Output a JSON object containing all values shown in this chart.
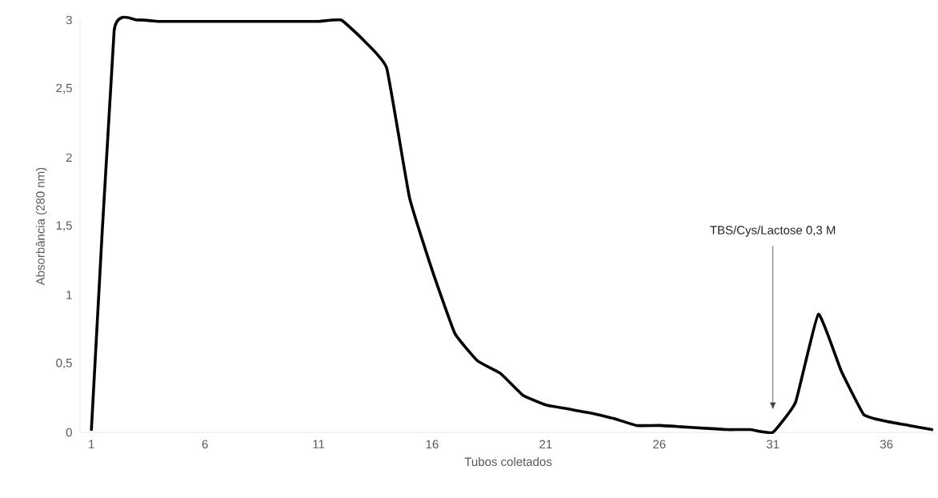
{
  "chart_data": {
    "type": "line",
    "xlabel": "Tubos coletados",
    "ylabel": "Absorbância (280 nm)",
    "x": [
      1,
      2,
      3,
      4,
      5,
      6,
      7,
      8,
      9,
      10,
      11,
      12,
      13,
      14,
      15,
      16,
      17,
      18,
      19,
      20,
      21,
      22,
      23,
      24,
      25,
      26,
      27,
      28,
      29,
      30,
      31,
      32,
      33,
      34,
      35,
      36,
      37,
      38
    ],
    "series": [
      {
        "color": "#000000",
        "values": [
          0.02,
          2.92,
          3.0,
          2.99,
          2.99,
          2.99,
          2.99,
          2.99,
          2.99,
          2.99,
          2.99,
          3.0,
          2.85,
          2.65,
          1.71,
          1.18,
          0.72,
          0.52,
          0.43,
          0.27,
          0.2,
          0.17,
          0.14,
          0.1,
          0.05,
          0.05,
          0.04,
          0.03,
          0.02,
          0.02,
          0.0,
          0.22,
          0.86,
          0.45,
          0.13,
          0.08,
          0.05,
          0.02
        ]
      }
    ],
    "xlim": [
      0.5,
      38.2
    ],
    "ylim": [
      0,
      3
    ],
    "xticks": [
      1,
      6,
      11,
      16,
      21,
      26,
      31,
      36
    ],
    "yticks": [
      0,
      {
        "value": 0.5,
        "label": "0,5"
      },
      1,
      {
        "value": 1.5,
        "label": "1,5"
      },
      2,
      {
        "value": 2.5,
        "label": "2,5"
      },
      3
    ],
    "ref_lines": [
      {
        "axis": "x",
        "value": 31,
        "label": "TBS/Cys/Lactose 0,3 M"
      }
    ],
    "grid": false,
    "legend": false,
    "marker": "none",
    "line_style": "solid"
  }
}
